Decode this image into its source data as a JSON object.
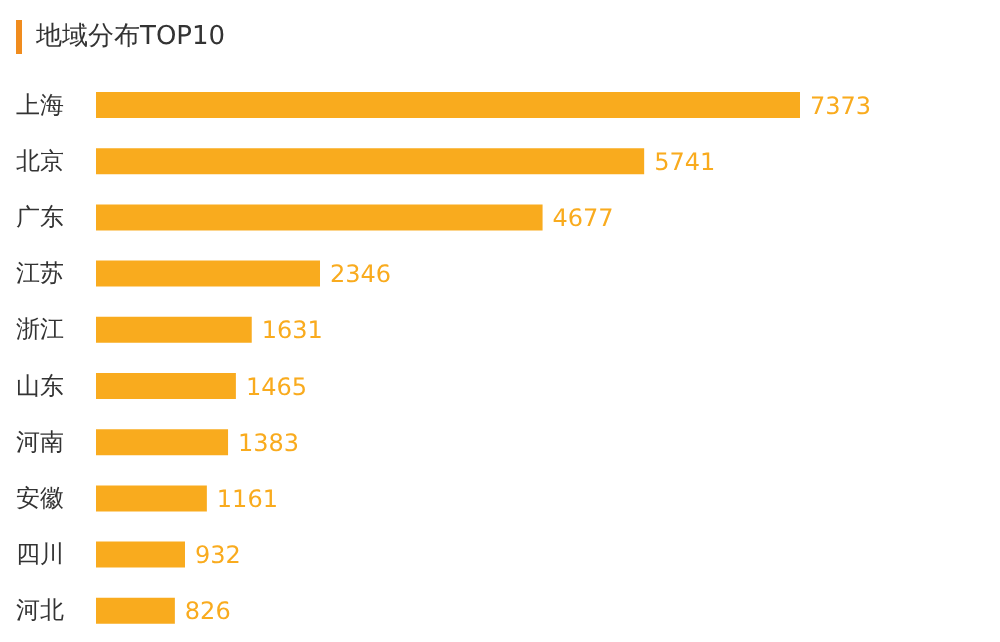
{
  "chart_data": {
    "type": "bar",
    "orientation": "horizontal",
    "title": "地域分布TOP10",
    "categories": [
      "上海",
      "北京",
      "广东",
      "江苏",
      "浙江",
      "山东",
      "河南",
      "安徽",
      "四川",
      "河北"
    ],
    "values": [
      7373,
      5741,
      4677,
      2346,
      1631,
      1465,
      1383,
      1161,
      932,
      826
    ],
    "color": "#f9ab1e",
    "data_labels": true,
    "grid": false,
    "legend": false
  }
}
